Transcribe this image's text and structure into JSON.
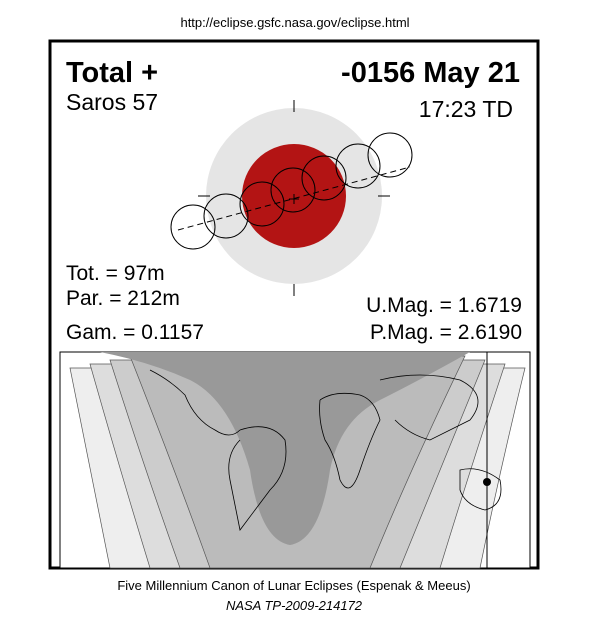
{
  "header": {
    "url": "http://eclipse.gsfc.nasa.gov/eclipse.html"
  },
  "eclipse": {
    "type": "Total +",
    "date": "-0156 May 21",
    "saros": "Saros 57",
    "time": "17:23 TD",
    "tot": "Tot. = 97m",
    "par": "Par. = 212m",
    "gam": "Gam. = 0.1157",
    "umag": "U.Mag. = 1.6719",
    "pmag": "P.Mag. = 2.6190"
  },
  "footer": {
    "title": "Five Millennium Canon of Lunar Eclipses (Espenak & Meeus)",
    "ref": "NASA TP-2009-214172"
  }
}
